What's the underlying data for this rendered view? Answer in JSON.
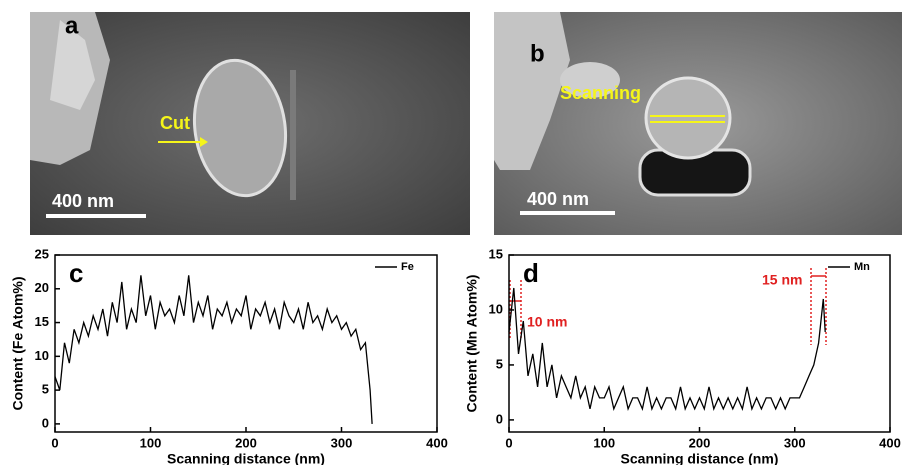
{
  "images": [
    {
      "label": "a",
      "annotation": "Cut",
      "scale_bar": "400 nm"
    },
    {
      "label": "b",
      "annotation": "Scanning",
      "scale_bar": "400 nm"
    }
  ],
  "chart_data": [
    {
      "type": "line",
      "panel": "c",
      "xlabel": "Scanning distance (nm)",
      "ylabel": "Content (Fe Atom%)",
      "xlim": [
        0,
        400
      ],
      "xticks": [
        0,
        100,
        200,
        300,
        400
      ],
      "ylim": [
        -1.2,
        25
      ],
      "yticks": [
        0,
        5,
        10,
        15,
        20,
        25
      ],
      "x": [
        0,
        5,
        10,
        15,
        20,
        25,
        30,
        35,
        40,
        45,
        50,
        55,
        60,
        65,
        70,
        75,
        80,
        85,
        90,
        95,
        100,
        105,
        110,
        115,
        120,
        125,
        130,
        135,
        140,
        145,
        150,
        155,
        160,
        165,
        170,
        175,
        180,
        185,
        190,
        195,
        200,
        205,
        210,
        215,
        220,
        225,
        230,
        235,
        240,
        245,
        250,
        255,
        260,
        265,
        270,
        275,
        280,
        285,
        290,
        295,
        300,
        305,
        310,
        315,
        320,
        325,
        330,
        332
      ],
      "series": [
        {
          "name": "Fe",
          "color": "#000000",
          "values": [
            7,
            5,
            12,
            9,
            14,
            12,
            15,
            13,
            16,
            14,
            17,
            13,
            18,
            15,
            21,
            14,
            17,
            15,
            22,
            16,
            19,
            14,
            18,
            16,
            17,
            15,
            19,
            16,
            22,
            15,
            18,
            16,
            19,
            14,
            17,
            16,
            18,
            15,
            17,
            16,
            19,
            14,
            17,
            16,
            18,
            15,
            17,
            14,
            18,
            16,
            15,
            17,
            14,
            18,
            15,
            16,
            14,
            17,
            15,
            16,
            14,
            15,
            13,
            14,
            11,
            12,
            5,
            0
          ]
        }
      ]
    },
    {
      "type": "line",
      "panel": "d",
      "xlabel": "Scanning distance (nm)",
      "ylabel": "Content (Mn Atom%)",
      "annotations": [
        "10 nm",
        "15 nm"
      ],
      "xlim": [
        0,
        400
      ],
      "xticks": [
        0,
        100,
        200,
        300,
        400
      ],
      "ylim": [
        -1.1,
        15
      ],
      "yticks": [
        0,
        5,
        10,
        15
      ],
      "x": [
        0,
        5,
        10,
        15,
        20,
        25,
        30,
        35,
        40,
        45,
        50,
        55,
        60,
        65,
        70,
        75,
        80,
        85,
        90,
        95,
        100,
        105,
        110,
        115,
        120,
        125,
        130,
        135,
        140,
        145,
        150,
        155,
        160,
        165,
        170,
        175,
        180,
        185,
        190,
        195,
        200,
        205,
        210,
        215,
        220,
        225,
        230,
        235,
        240,
        245,
        250,
        255,
        260,
        265,
        270,
        275,
        280,
        285,
        290,
        295,
        300,
        305,
        310,
        315,
        320,
        325,
        330,
        332
      ],
      "series": [
        {
          "name": "Mn",
          "color": "#000000",
          "values": [
            8,
            12,
            6,
            9,
            4,
            6,
            3,
            7,
            3,
            5,
            2,
            4,
            3,
            2,
            4,
            2,
            3,
            1,
            3,
            2,
            2,
            3,
            1,
            2,
            3,
            1,
            2,
            2,
            1,
            3,
            1,
            2,
            1,
            2,
            2,
            1,
            3,
            1,
            2,
            1,
            2,
            1,
            3,
            1,
            2,
            1,
            2,
            1,
            2,
            1,
            3,
            1,
            2,
            1,
            2,
            2,
            1,
            2,
            1,
            2,
            2,
            2,
            3,
            4,
            5,
            7,
            11,
            8
          ]
        }
      ]
    }
  ]
}
